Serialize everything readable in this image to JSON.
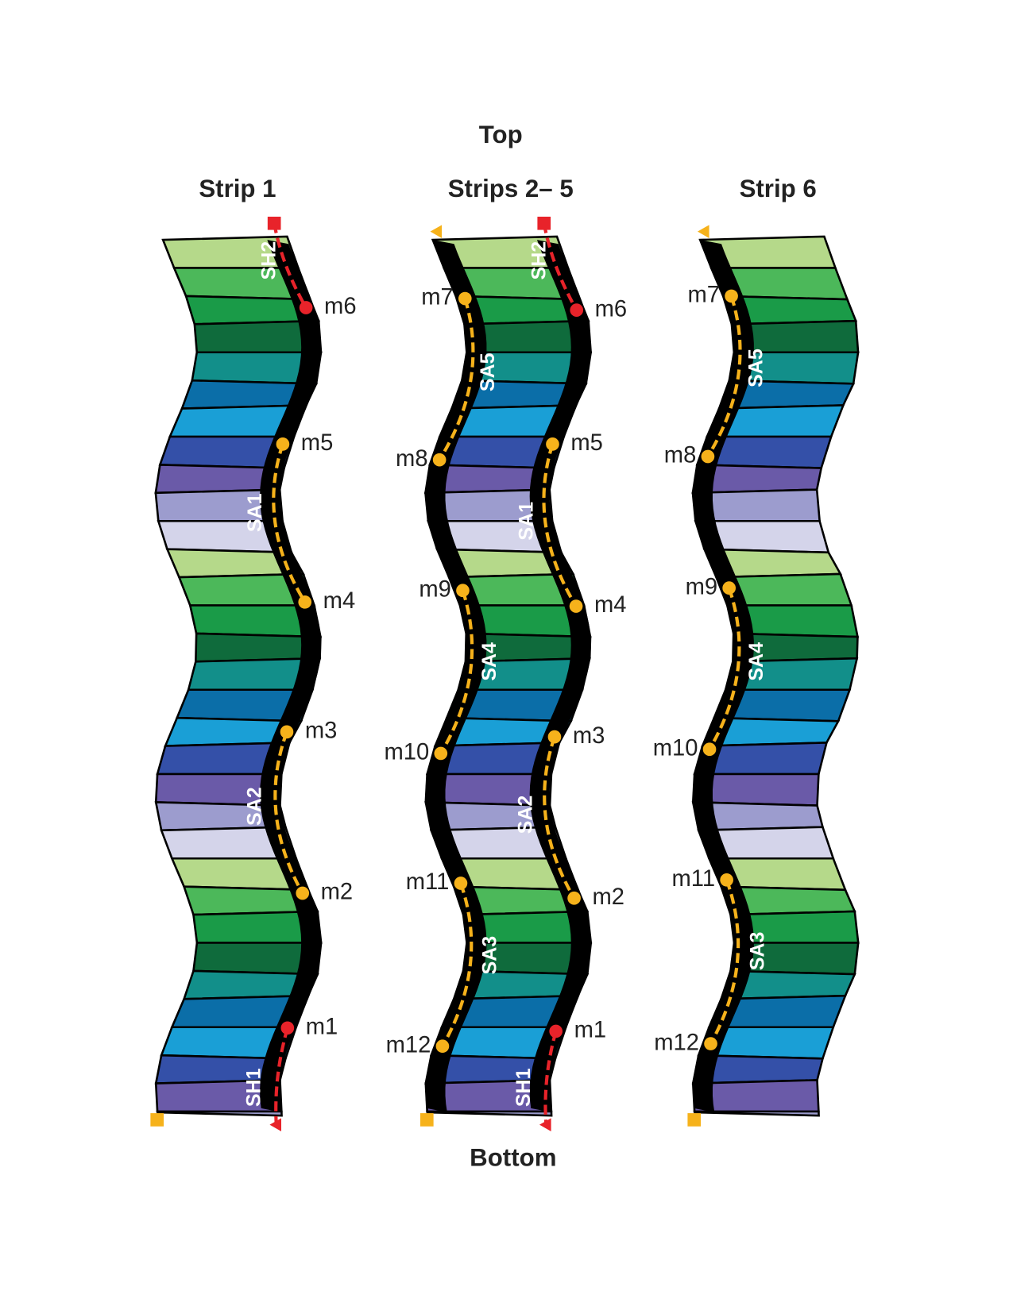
{
  "header": {
    "top": "Top",
    "bottom": "Bottom"
  },
  "strips": [
    {
      "title": "Strip 1",
      "right_markers": [
        "m6",
        "m5",
        "m4",
        "m3",
        "m2",
        "m1"
      ],
      "left_markers": [],
      "segments": [
        "SH2",
        "SA1",
        "SA2",
        "SH1"
      ]
    },
    {
      "title": "Strips 2– 5",
      "right_markers": [
        "m6",
        "m5",
        "m4",
        "m3",
        "m2",
        "m1"
      ],
      "left_markers": [
        "m7",
        "m8",
        "m9",
        "m10",
        "m11",
        "m12"
      ],
      "segments": [
        "SH2",
        "SA5",
        "SA1",
        "SA4",
        "SA2",
        "SA3",
        "SH1"
      ]
    },
    {
      "title": "Strip 6",
      "right_markers": [],
      "left_markers": [
        "m7",
        "m8",
        "m9",
        "m10",
        "m11",
        "m12"
      ],
      "segments": [
        "SA5",
        "SA4",
        "SA3"
      ]
    }
  ]
}
